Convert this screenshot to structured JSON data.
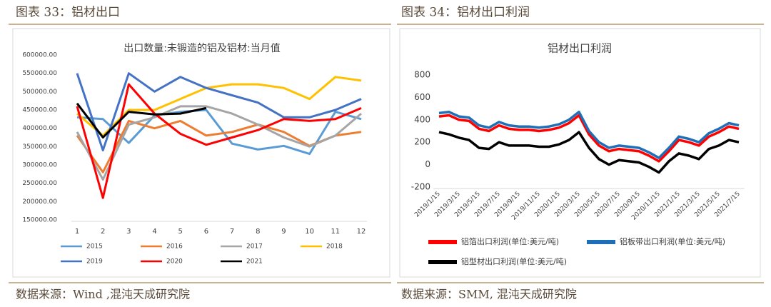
{
  "figures": [
    {
      "caption": "图表 33：铝材出口",
      "source": "数据来源：Wind ,混沌天成研究院"
    },
    {
      "caption": "图表 34：铝材出口利润",
      "source": "数据来源：SMM, 混沌天成研究院"
    }
  ],
  "chart_data": [
    {
      "type": "line",
      "title": "出口数量:未锻造的铝及铝材:当月值",
      "categories": [
        "1",
        "2",
        "3",
        "4",
        "5",
        "6",
        "7",
        "8",
        "9",
        "10",
        "11",
        "12"
      ],
      "ylim": [
        150000,
        600000
      ],
      "yticks": [
        {
          "value": 150000,
          "label": "150000.00"
        },
        {
          "value": 200000,
          "label": "200000.00"
        },
        {
          "value": 250000,
          "label": "250000.00"
        },
        {
          "value": 300000,
          "label": "300000.00"
        },
        {
          "value": 350000,
          "label": "350000.00"
        },
        {
          "value": 400000,
          "label": "400000.00"
        },
        {
          "value": 450000,
          "label": "450000.00"
        },
        {
          "value": 500000,
          "label": "500000.00"
        },
        {
          "value": 550000,
          "label": "550000.00"
        },
        {
          "value": 600000,
          "label": "600000.00"
        }
      ],
      "grid": false,
      "series": [
        {
          "name": "2015",
          "color": "#5b9bd5",
          "values": [
            430000,
            425000,
            360000,
            435000,
            445000,
            450000,
            358000,
            342000,
            352000,
            330000,
            445000,
            425000
          ]
        },
        {
          "name": "2016",
          "color": "#ed7d31",
          "values": [
            380000,
            280000,
            420000,
            400000,
            420000,
            380000,
            390000,
            410000,
            390000,
            352000,
            380000,
            390000
          ]
        },
        {
          "name": "2017",
          "color": "#a5a5a5",
          "values": [
            390000,
            260000,
            410000,
            430000,
            460000,
            460000,
            440000,
            410000,
            375000,
            350000,
            380000,
            440000
          ]
        },
        {
          "name": "2018",
          "color": "#ffc000",
          "values": [
            440000,
            380000,
            450000,
            450000,
            480000,
            510000,
            520000,
            520000,
            510000,
            480000,
            540000,
            530000
          ]
        },
        {
          "name": "2019",
          "color": "#4472c4",
          "values": [
            550000,
            340000,
            550000,
            500000,
            540000,
            510000,
            490000,
            470000,
            430000,
            430000,
            450000,
            480000
          ]
        },
        {
          "name": "2020",
          "color": "#ff0000",
          "values": [
            460000,
            210000,
            520000,
            440000,
            385000,
            355000,
            375000,
            395000,
            425000,
            420000,
            425000,
            455000
          ]
        },
        {
          "name": "2021",
          "color": "#000000",
          "values": [
            468000,
            375000,
            445000,
            438000,
            440000,
            455000,
            null,
            null,
            null,
            null,
            null,
            null
          ]
        }
      ]
    },
    {
      "type": "line",
      "title": "铝材出口利润",
      "categories": [
        "2019/1/15",
        null,
        "2019/3/15",
        null,
        "2019/5/15",
        null,
        "2019/7/15",
        null,
        "2019/9/15",
        null,
        "2019/11/15",
        null,
        "2020/1/15",
        null,
        "2020/3/15",
        null,
        "2020/5/15",
        null,
        "2020/7/15",
        null,
        "2020/9/15",
        null,
        "2020/11/15",
        null,
        "2021/1/15",
        null,
        "2021/3/15",
        null,
        "2021/5/15",
        null,
        "2021/7/15"
      ],
      "ylim": [
        -200,
        800
      ],
      "yticks": [
        -200,
        0,
        200,
        400,
        600,
        800
      ],
      "grid": false,
      "series": [
        {
          "name": "铝箔出口利润(单位:美元/吨)",
          "color": "#ff0000",
          "values": [
            430,
            440,
            400,
            390,
            320,
            300,
            350,
            320,
            310,
            310,
            300,
            310,
            330,
            370,
            440,
            270,
            170,
            120,
            140,
            130,
            120,
            80,
            30,
            120,
            220,
            200,
            170,
            250,
            290,
            340,
            320
          ]
        },
        {
          "name": "铝板带出口利润(单位:美元/吨)",
          "color": "#1f6fb8",
          "values": [
            460,
            470,
            430,
            420,
            350,
            330,
            380,
            350,
            340,
            340,
            330,
            340,
            360,
            400,
            470,
            300,
            200,
            150,
            170,
            160,
            150,
            110,
            60,
            150,
            250,
            230,
            200,
            280,
            320,
            370,
            350
          ]
        },
        {
          "name": "铝型材出口利润(单位:美元/吨)",
          "color": "#000000",
          "values": [
            290,
            270,
            240,
            220,
            150,
            140,
            200,
            170,
            170,
            170,
            160,
            160,
            180,
            220,
            290,
            150,
            50,
            0,
            40,
            30,
            20,
            -20,
            -70,
            30,
            100,
            80,
            50,
            140,
            170,
            220,
            200
          ]
        }
      ]
    }
  ]
}
